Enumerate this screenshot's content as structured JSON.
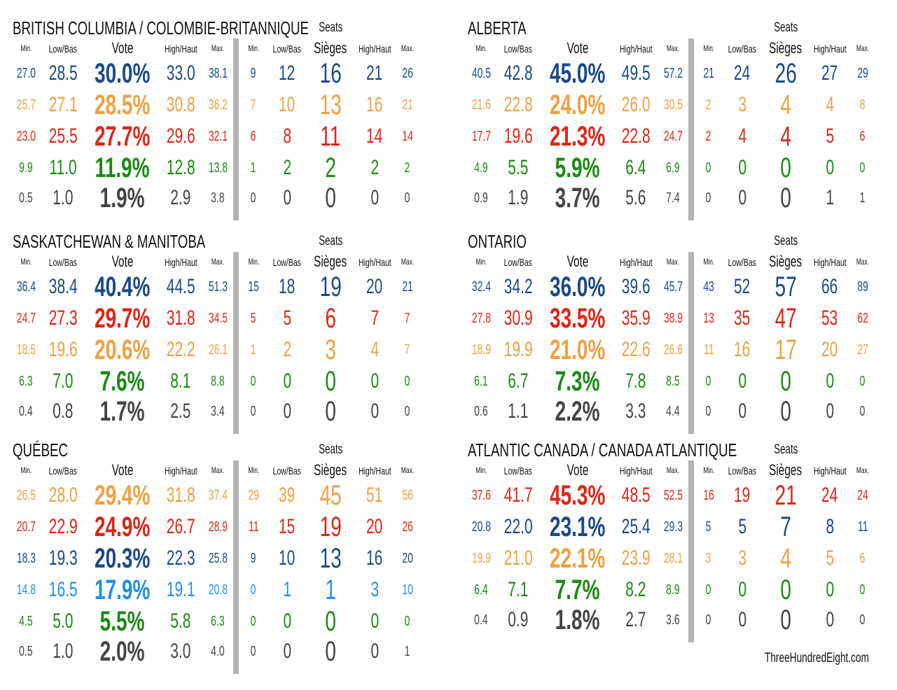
{
  "colors": {
    "cpc": "#1a4a85",
    "ndp": "#f0a040",
    "lpc": "#e02414",
    "gpc": "#1a8a12",
    "bq": "#1e90e8",
    "oth": "#444444"
  },
  "headers": {
    "min": "Min.",
    "low": "Low/Bas",
    "vote": "Vote",
    "high": "High/Haut",
    "max": "Max.",
    "seats": "Seats",
    "sieges": "Sièges"
  },
  "footer": "ThreeHundredEight.com",
  "chart_data": {
    "type": "table",
    "columns": [
      "Min.",
      "Low/Bas",
      "Vote",
      "High/Haut",
      "Max.",
      "Seats Min.",
      "Seats Low/Bas",
      "Seats/Sièges",
      "Seats High/Haut",
      "Seats Max."
    ],
    "regions": [
      {
        "title": "BRITISH COLUMBIA / COLOMBIE-BRITANNIQUE",
        "rows": [
          {
            "party": "cpc",
            "v": [
              "27.0",
              "28.5",
              "30.0%",
              "33.0",
              "38.1",
              "9",
              "12",
              "16",
              "21",
              "26"
            ]
          },
          {
            "party": "ndp",
            "v": [
              "25.7",
              "27.1",
              "28.5%",
              "30.8",
              "36.2",
              "7",
              "10",
              "13",
              "16",
              "21"
            ]
          },
          {
            "party": "lpc",
            "v": [
              "23.0",
              "25.5",
              "27.7%",
              "29.6",
              "32.1",
              "6",
              "8",
              "11",
              "14",
              "14"
            ]
          },
          {
            "party": "gpc",
            "v": [
              "9.9",
              "11.0",
              "11.9%",
              "12.8",
              "13.8",
              "1",
              "2",
              "2",
              "2",
              "2"
            ]
          },
          {
            "party": "oth",
            "v": [
              "0.5",
              "1.0",
              "1.9%",
              "2.9",
              "3.8",
              "0",
              "0",
              "0",
              "0",
              "0"
            ]
          }
        ]
      },
      {
        "title": "ALBERTA",
        "rows": [
          {
            "party": "cpc",
            "v": [
              "40.5",
              "42.8",
              "45.0%",
              "49.5",
              "57.2",
              "21",
              "24",
              "26",
              "27",
              "29"
            ]
          },
          {
            "party": "ndp",
            "v": [
              "21.6",
              "22.8",
              "24.0%",
              "26.0",
              "30.5",
              "2",
              "3",
              "4",
              "4",
              "8"
            ]
          },
          {
            "party": "lpc",
            "v": [
              "17.7",
              "19.6",
              "21.3%",
              "22.8",
              "24.7",
              "2",
              "4",
              "4",
              "5",
              "6"
            ]
          },
          {
            "party": "gpc",
            "v": [
              "4.9",
              "5.5",
              "5.9%",
              "6.4",
              "6.9",
              "0",
              "0",
              "0",
              "0",
              "0"
            ]
          },
          {
            "party": "oth",
            "v": [
              "0.9",
              "1.9",
              "3.7%",
              "5.6",
              "7.4",
              "0",
              "0",
              "0",
              "1",
              "1"
            ]
          }
        ]
      },
      {
        "title": "SASKATCHEWAN & MANITOBA",
        "rows": [
          {
            "party": "cpc",
            "v": [
              "36.4",
              "38.4",
              "40.4%",
              "44.5",
              "51.3",
              "15",
              "18",
              "19",
              "20",
              "21"
            ]
          },
          {
            "party": "lpc",
            "v": [
              "24.7",
              "27.3",
              "29.7%",
              "31.8",
              "34.5",
              "5",
              "5",
              "6",
              "7",
              "7"
            ]
          },
          {
            "party": "ndp",
            "v": [
              "18.5",
              "19.6",
              "20.6%",
              "22.2",
              "26.1",
              "1",
              "2",
              "3",
              "4",
              "7"
            ]
          },
          {
            "party": "gpc",
            "v": [
              "6.3",
              "7.0",
              "7.6%",
              "8.1",
              "8.8",
              "0",
              "0",
              "0",
              "0",
              "0"
            ]
          },
          {
            "party": "oth",
            "v": [
              "0.4",
              "0.8",
              "1.7%",
              "2.5",
              "3.4",
              "0",
              "0",
              "0",
              "0",
              "0"
            ]
          }
        ]
      },
      {
        "title": "ONTARIO",
        "rows": [
          {
            "party": "cpc",
            "v": [
              "32.4",
              "34.2",
              "36.0%",
              "39.6",
              "45.7",
              "43",
              "52",
              "57",
              "66",
              "89"
            ]
          },
          {
            "party": "lpc",
            "v": [
              "27.8",
              "30.9",
              "33.5%",
              "35.9",
              "38.9",
              "13",
              "35",
              "47",
              "53",
              "62"
            ]
          },
          {
            "party": "ndp",
            "v": [
              "18.9",
              "19.9",
              "21.0%",
              "22.6",
              "26.6",
              "11",
              "16",
              "17",
              "20",
              "27"
            ]
          },
          {
            "party": "gpc",
            "v": [
              "6.1",
              "6.7",
              "7.3%",
              "7.8",
              "8.5",
              "0",
              "0",
              "0",
              "0",
              "0"
            ]
          },
          {
            "party": "oth",
            "v": [
              "0.6",
              "1.1",
              "2.2%",
              "3.3",
              "4.4",
              "0",
              "0",
              "0",
              "0",
              "0"
            ]
          }
        ]
      },
      {
        "title": "QUÉBEC",
        "rows": [
          {
            "party": "ndp",
            "v": [
              "26.5",
              "28.0",
              "29.4%",
              "31.8",
              "37.4",
              "29",
              "39",
              "45",
              "51",
              "56"
            ]
          },
          {
            "party": "lpc",
            "v": [
              "20.7",
              "22.9",
              "24.9%",
              "26.7",
              "28.9",
              "11",
              "15",
              "19",
              "20",
              "26"
            ]
          },
          {
            "party": "cpc",
            "v": [
              "18.3",
              "19.3",
              "20.3%",
              "22.3",
              "25.8",
              "9",
              "10",
              "13",
              "16",
              "20"
            ]
          },
          {
            "party": "bq",
            "v": [
              "14.8",
              "16.5",
              "17.9%",
              "19.1",
              "20.8",
              "0",
              "1",
              "1",
              "3",
              "10"
            ]
          },
          {
            "party": "gpc",
            "v": [
              "4.5",
              "5.0",
              "5.5%",
              "5.8",
              "6.3",
              "0",
              "0",
              "0",
              "0",
              "0"
            ]
          },
          {
            "party": "oth",
            "v": [
              "0.5",
              "1.0",
              "2.0%",
              "3.0",
              "4.0",
              "0",
              "0",
              "0",
              "0",
              "1"
            ]
          }
        ]
      },
      {
        "title": "ATLANTIC CANADA / CANADA ATLANTIQUE",
        "rows": [
          {
            "party": "lpc",
            "v": [
              "37.6",
              "41.7",
              "45.3%",
              "48.5",
              "52.5",
              "16",
              "19",
              "21",
              "24",
              "24"
            ]
          },
          {
            "party": "cpc",
            "v": [
              "20.8",
              "22.0",
              "23.1%",
              "25.4",
              "29.3",
              "5",
              "5",
              "7",
              "8",
              "11"
            ]
          },
          {
            "party": "ndp",
            "v": [
              "19.9",
              "21.0",
              "22.1%",
              "23.9",
              "28.1",
              "3",
              "3",
              "4",
              "5",
              "6"
            ]
          },
          {
            "party": "gpc",
            "v": [
              "6.4",
              "7.1",
              "7.7%",
              "8.2",
              "8.9",
              "0",
              "0",
              "0",
              "0",
              "0"
            ]
          },
          {
            "party": "oth",
            "v": [
              "0.4",
              "0.9",
              "1.8%",
              "2.7",
              "3.6",
              "0",
              "0",
              "0",
              "0",
              "0"
            ]
          }
        ]
      }
    ]
  }
}
